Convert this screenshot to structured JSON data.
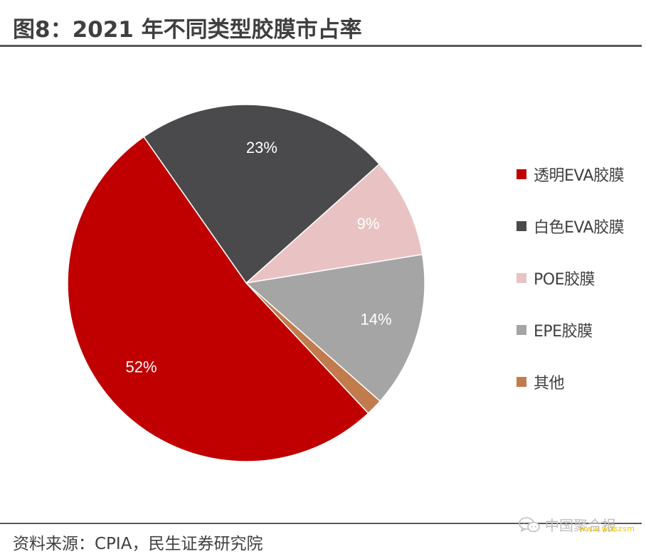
{
  "header": {
    "title": "图8：2021 年不同类型胶膜市占率"
  },
  "chart_data": {
    "type": "pie",
    "title": "图8：2021 年不同类型胶膜市占率",
    "start_angle_deg": -35,
    "direction": "clockwise",
    "slices": [
      {
        "name": "白色EVA胶膜",
        "value": 23,
        "label": "23%",
        "color": "#4a4a4c",
        "label_color": "#ffffff"
      },
      {
        "name": "POE胶膜",
        "value": 9,
        "label": "9%",
        "color": "#e9c3c3",
        "label_color": "#ffffff"
      },
      {
        "name": "EPE胶膜",
        "value": 14,
        "label": "14%",
        "color": "#a5a5a5",
        "label_color": "#ffffff"
      },
      {
        "name": "其他",
        "value": 1.5,
        "label": "",
        "color": "#c27b4c",
        "label_color": "#ffffff"
      },
      {
        "name": "透明EVA胶膜",
        "value": 52,
        "label": "52%",
        "color": "#c00000",
        "label_color": "#ffffff"
      }
    ],
    "legend": {
      "position": "right",
      "items": [
        {
          "name": "透明EVA胶膜",
          "color": "#c00000"
        },
        {
          "name": "白色EVA胶膜",
          "color": "#4a4a4c"
        },
        {
          "name": "POE胶膜",
          "color": "#e9c3c3"
        },
        {
          "name": "EPE胶膜",
          "color": "#a5a5a5"
        },
        {
          "name": "其他",
          "color": "#c27b4c"
        }
      ]
    }
  },
  "footer": {
    "source": "资料来源：CPIA，民生证券研究院",
    "watermark_text": "中国聚合报",
    "watermark_url": "www.wdszsm"
  }
}
